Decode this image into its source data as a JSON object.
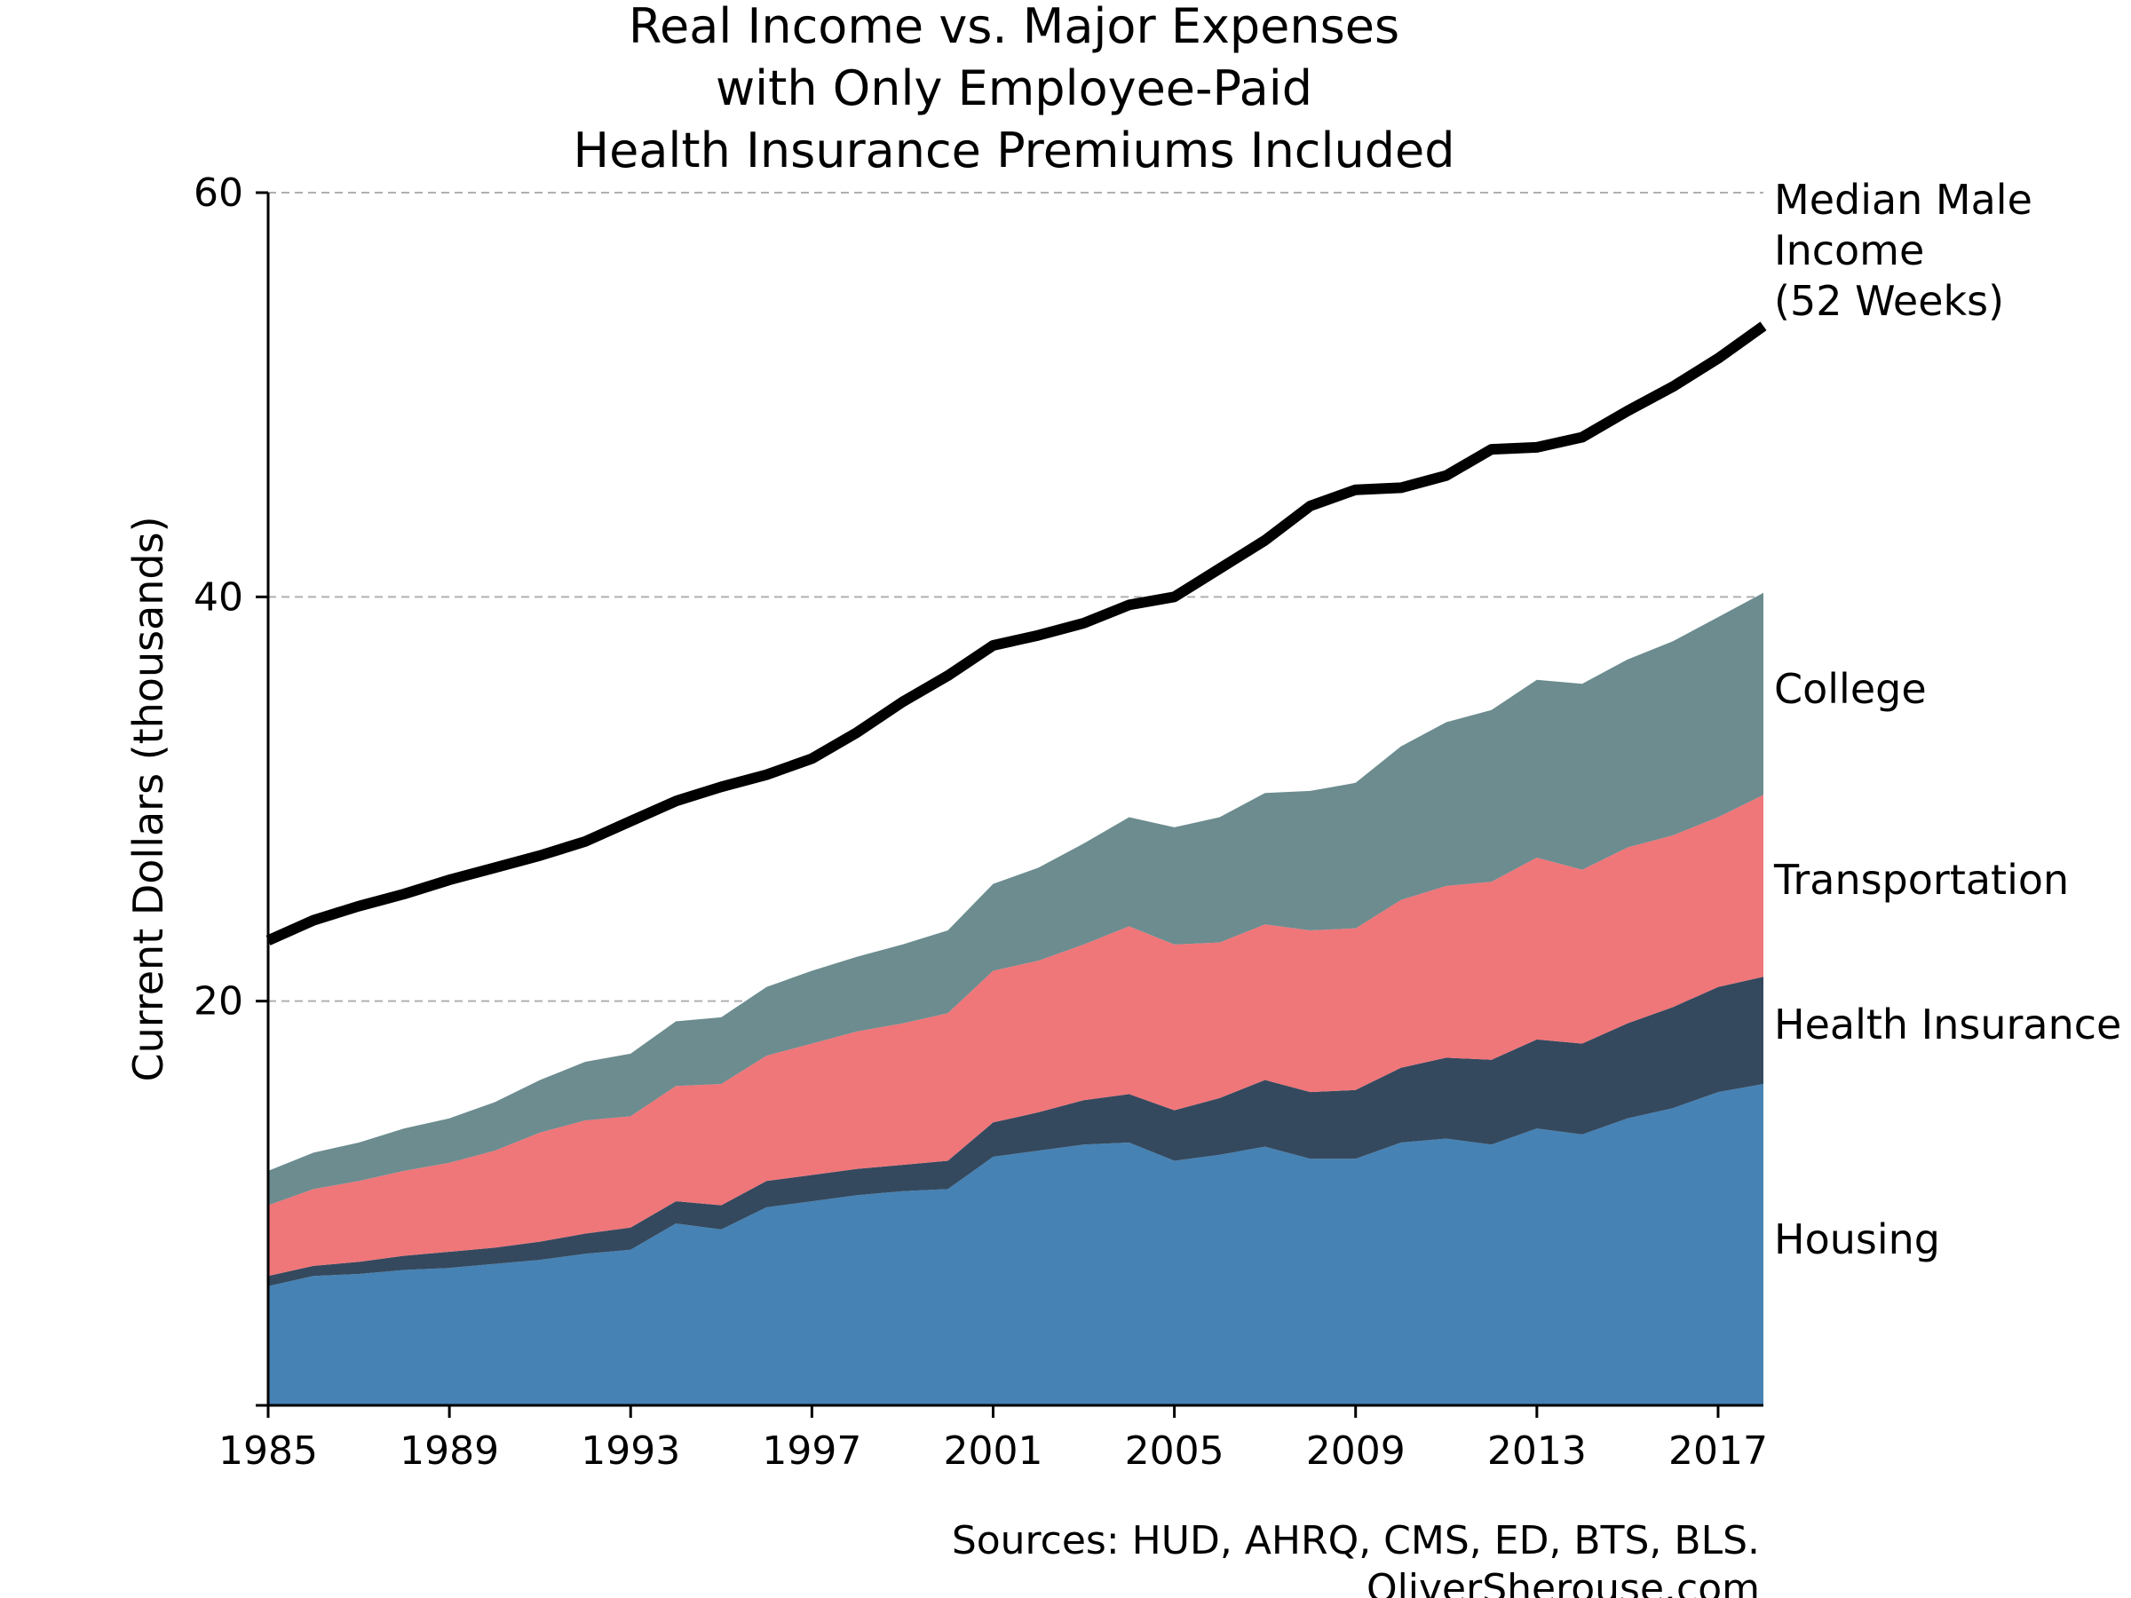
{
  "chart_data": {
    "type": "area",
    "title_lines": [
      "Real Income vs. Major Expenses",
      "with Only Employee-Paid",
      "Health Insurance Premiums Included"
    ],
    "xlabel": "",
    "ylabel": "Current Dollars (thousands)",
    "xlim": [
      1985,
      2018
    ],
    "ylim": [
      0,
      60
    ],
    "x_ticks": [
      1985,
      1989,
      1993,
      1997,
      2001,
      2005,
      2009,
      2013,
      2017
    ],
    "y_ticks": [
      20,
      40,
      60
    ],
    "grid": "horizontal dashed",
    "x": [
      1985,
      1986,
      1987,
      1988,
      1989,
      1990,
      1991,
      1992,
      1993,
      1994,
      1995,
      1996,
      1997,
      1998,
      1999,
      2000,
      2001,
      2002,
      2003,
      2004,
      2005,
      2006,
      2007,
      2008,
      2009,
      2010,
      2011,
      2012,
      2013,
      2014,
      2015,
      2016,
      2017,
      2018
    ],
    "stacked_series": [
      {
        "name": "Housing",
        "color": "#4682b4",
        "values": [
          5.9,
          6.4,
          6.5,
          6.7,
          6.8,
          7.0,
          7.2,
          7.5,
          7.7,
          9.0,
          8.7,
          9.8,
          10.1,
          10.4,
          10.6,
          10.7,
          12.3,
          12.6,
          12.9,
          13.0,
          12.1,
          12.4,
          12.8,
          12.2,
          12.2,
          13.0,
          13.2,
          12.9,
          13.7,
          13.4,
          14.2,
          14.7,
          15.5,
          15.9
        ]
      },
      {
        "name": "Health Insurance",
        "color": "#34495e",
        "values": [
          0.5,
          0.5,
          0.6,
          0.7,
          0.8,
          0.8,
          0.9,
          1.0,
          1.1,
          1.1,
          1.2,
          1.3,
          1.3,
          1.3,
          1.3,
          1.4,
          1.7,
          1.9,
          2.2,
          2.4,
          2.5,
          2.8,
          3.3,
          3.3,
          3.4,
          3.7,
          4.0,
          4.2,
          4.4,
          4.5,
          4.7,
          5.0,
          5.2,
          5.3
        ]
      },
      {
        "name": "Transportation",
        "color": "#ef7679",
        "values": [
          3.5,
          3.8,
          4.0,
          4.2,
          4.4,
          4.8,
          5.4,
          5.6,
          5.5,
          5.7,
          6.0,
          6.2,
          6.5,
          6.8,
          7.0,
          7.3,
          7.5,
          7.5,
          7.7,
          8.3,
          8.2,
          7.7,
          7.7,
          8.0,
          8.0,
          8.3,
          8.5,
          8.8,
          9.0,
          8.6,
          8.7,
          8.5,
          8.4,
          9.0
        ]
      },
      {
        "name": "College",
        "color": "#6c8c8f",
        "values": [
          1.7,
          1.8,
          1.9,
          2.1,
          2.2,
          2.4,
          2.6,
          2.9,
          3.1,
          3.2,
          3.3,
          3.4,
          3.6,
          3.7,
          3.9,
          4.1,
          4.3,
          4.6,
          5.0,
          5.4,
          5.8,
          6.2,
          6.5,
          6.9,
          7.2,
          7.6,
          8.1,
          8.5,
          8.8,
          9.2,
          9.3,
          9.6,
          9.9,
          10.0
        ]
      }
    ],
    "line_series": {
      "name": "Median Male Income (52 Weeks)",
      "label_lines": [
        "Median Male",
        "Income",
        "(52 Weeks)"
      ],
      "color": "#000000",
      "values": [
        23.0,
        24.0,
        24.7,
        25.3,
        26.0,
        26.6,
        27.2,
        27.9,
        28.9,
        29.9,
        30.6,
        31.2,
        32.0,
        33.3,
        34.8,
        36.1,
        37.6,
        38.1,
        38.7,
        39.6,
        40.0,
        41.4,
        42.8,
        44.5,
        45.3,
        45.4,
        46.0,
        47.3,
        47.4,
        47.9,
        49.2,
        50.4,
        51.8,
        53.4
      ]
    }
  },
  "source_lines": [
    "Sources: HUD, AHRQ, CMS, ED, BTS, BLS.",
    "OliverSherouse.com"
  ]
}
